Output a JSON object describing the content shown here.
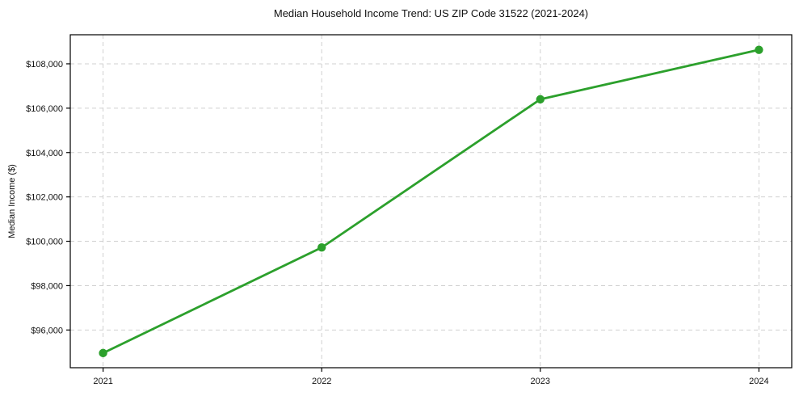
{
  "chart_data": {
    "type": "line",
    "title": "Median Household Income Trend: US ZIP Code 31522 (2021-2024)",
    "xlabel": "",
    "ylabel": "Median Income ($)",
    "x": [
      2021,
      2022,
      2023,
      2024
    ],
    "xtick_labels": [
      "2021",
      "2022",
      "2023",
      "2024"
    ],
    "series": [
      {
        "name": "Median Household Income",
        "values": [
          94960,
          99720,
          106400,
          108630
        ],
        "color": "#2ca02c",
        "marker": "circle"
      }
    ],
    "yticks": [
      96000,
      98000,
      100000,
      102000,
      104000,
      106000,
      108000
    ],
    "ytick_labels": [
      "$96,000",
      "$98,000",
      "$100,000",
      "$102,000",
      "$104,000",
      "$106,000",
      "$108,000"
    ],
    "xlim": [
      2020.85,
      2024.15
    ],
    "ylim": [
      94300,
      109310
    ],
    "grid": true,
    "grid_style": "dashed",
    "grid_color": "#d0d0d0",
    "spine_color": "#000000",
    "legend_position": "none"
  }
}
